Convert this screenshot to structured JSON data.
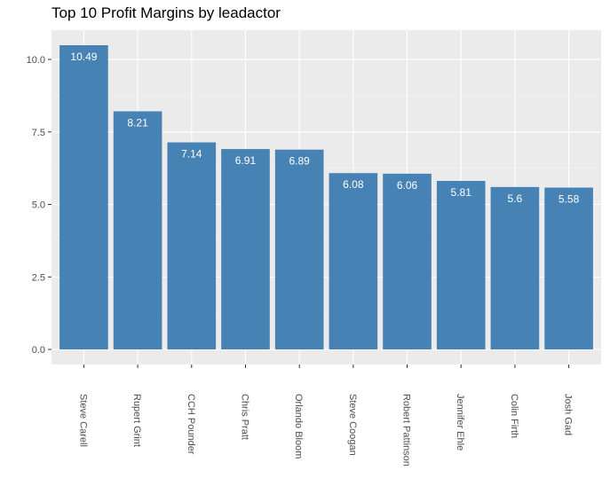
{
  "chart_data": {
    "type": "bar",
    "title": "Top 10 Profit Margins by leadactor",
    "xlabel": "",
    "ylabel": "",
    "categories": [
      "Steve Carell",
      "Rupert Grint",
      "CCH Pounder",
      "Chris Pratt",
      "Orlando Bloom",
      "Steve Coogan",
      "Robert Pattinson",
      "Jennifer Ehle",
      "Colin Firth",
      "Josh Gad"
    ],
    "values": [
      10.49,
      8.21,
      7.14,
      6.91,
      6.89,
      6.08,
      6.06,
      5.81,
      5.6,
      5.58
    ],
    "value_labels": [
      "10.49",
      "8.21",
      "7.14",
      "6.91",
      "6.89",
      "6.08",
      "6.06",
      "5.81",
      "5.6",
      "5.58"
    ],
    "yticks": [
      0,
      2.5,
      5,
      7.5,
      10
    ],
    "ytick_labels": [
      "0.0",
      "2.5",
      "5.0",
      "7.5",
      "10.0"
    ],
    "ylim": [
      -0.52,
      11.01
    ],
    "grid": true,
    "legend": "none",
    "colors": {
      "bar": "#4682B4",
      "panel": "#EBEBEB",
      "grid_major": "#FFFFFF",
      "grid_minor": "#F5F5F5"
    }
  }
}
